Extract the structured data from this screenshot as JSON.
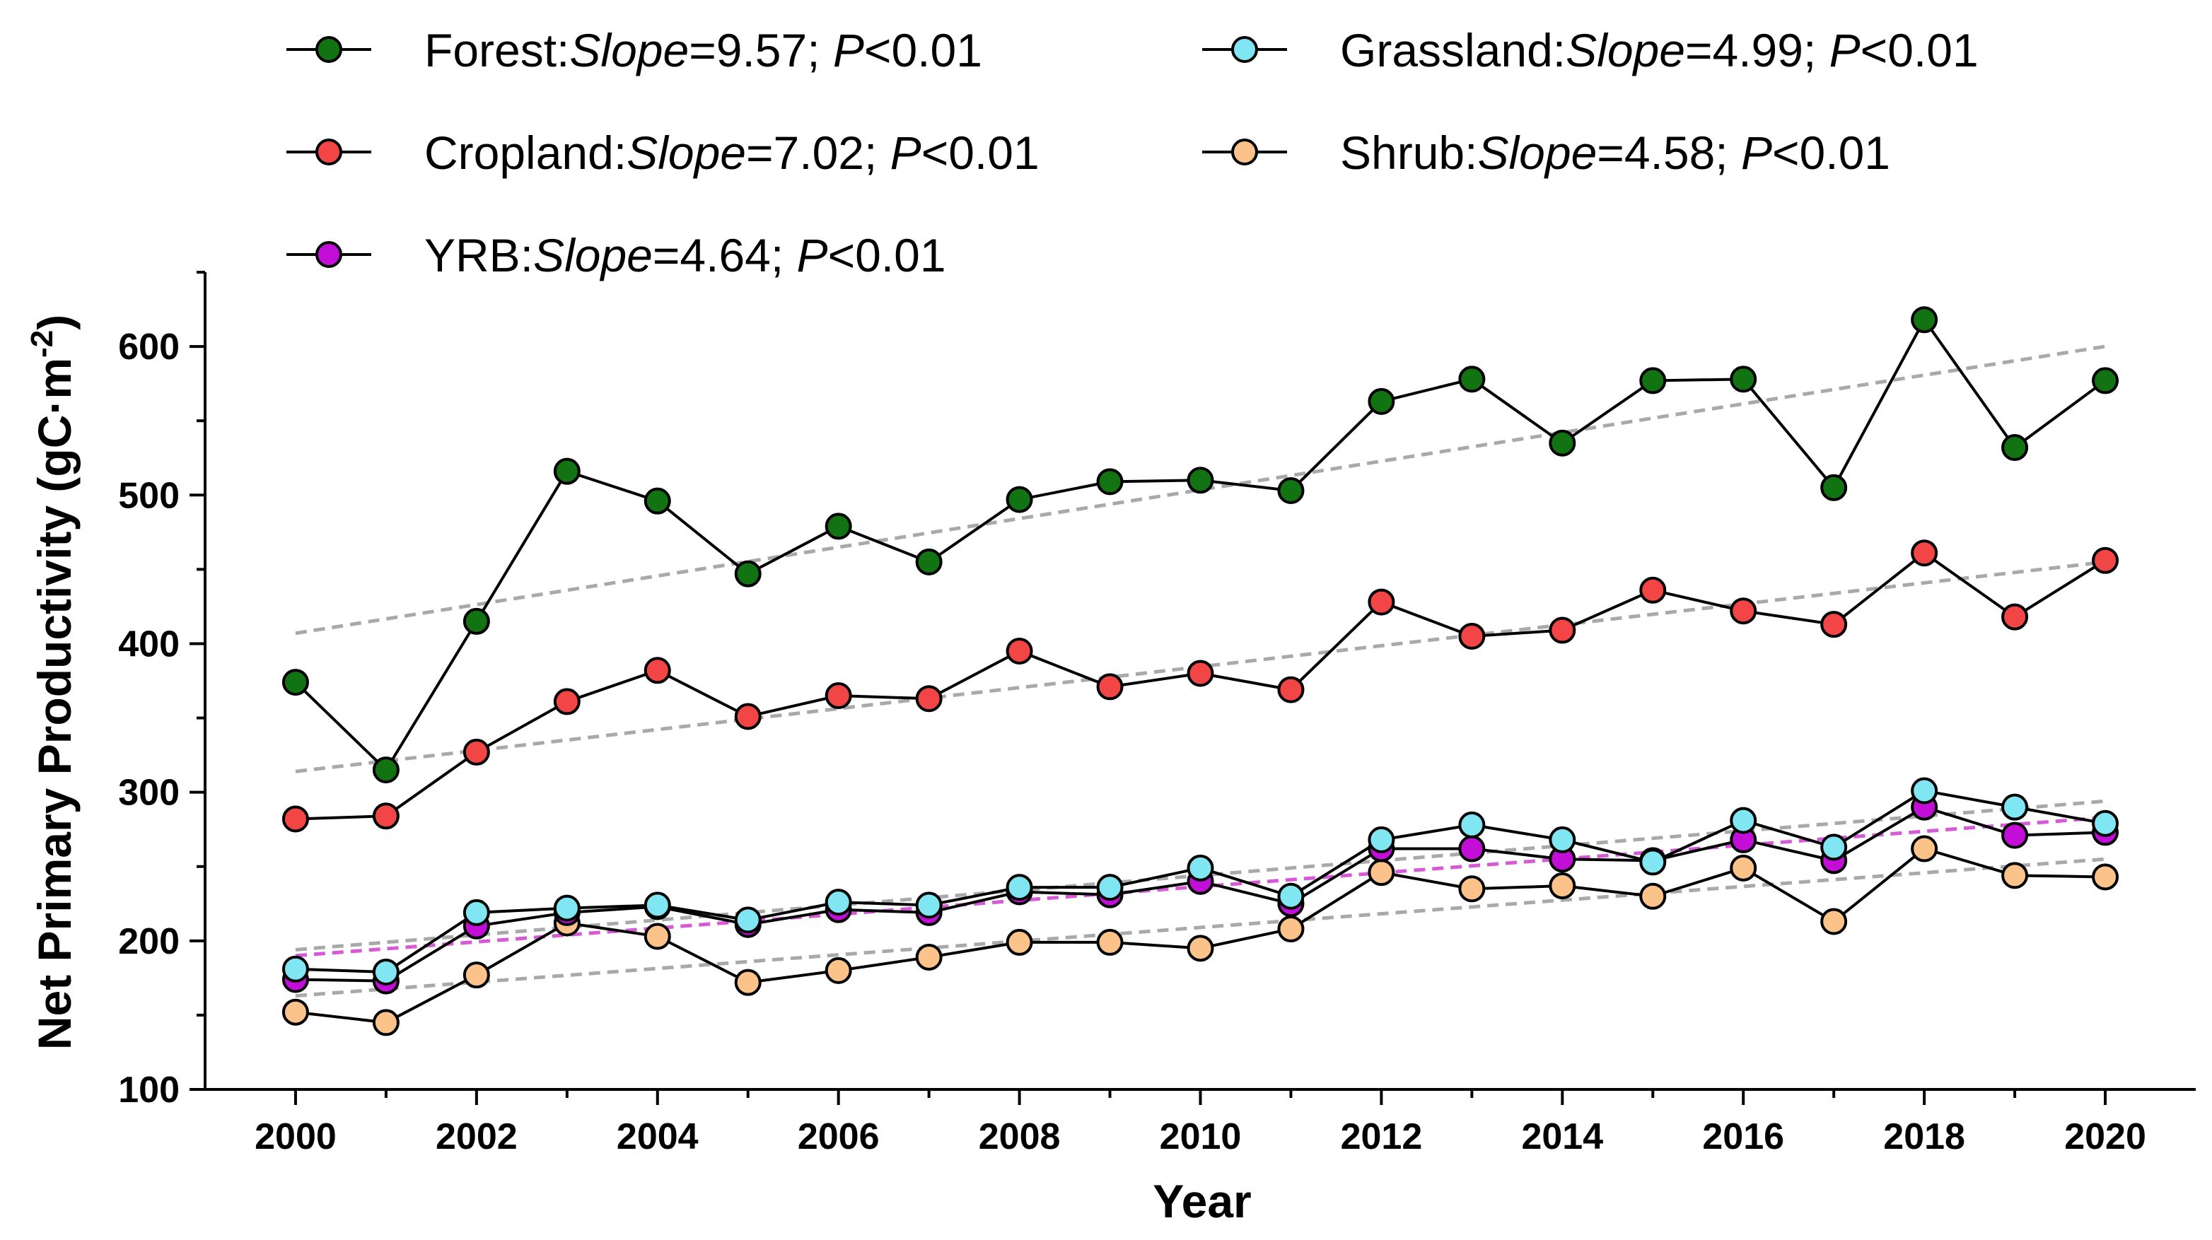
{
  "chart_data": {
    "type": "line",
    "xlabel": "Year",
    "ylabel": "Net Primary Productivity (gC·m",
    "ylabel_sup": "-2",
    "ylabel_close": ")",
    "xlim": [
      1999,
      2021
    ],
    "ylim": [
      100,
      650
    ],
    "x_ticks": [
      "2000",
      "2002",
      "2004",
      "2006",
      "2008",
      "2010",
      "2012",
      "2014",
      "2016",
      "2018",
      "2020"
    ],
    "y_ticks": [
      "100",
      "200",
      "300",
      "400",
      "500",
      "600"
    ],
    "x": [
      2000,
      2001,
      2002,
      2003,
      2004,
      2005,
      2006,
      2007,
      2008,
      2009,
      2010,
      2011,
      2012,
      2013,
      2014,
      2015,
      2016,
      2017,
      2018,
      2019,
      2020
    ],
    "series": [
      {
        "name": "Forest",
        "color": "#127312",
        "label_prefix": "Forest:",
        "label_slope_italic": "Slope",
        "label_slope_value": "=9.57; ",
        "label_p_italic": "P",
        "label_p_value": "<0.01",
        "values": [
          374,
          315,
          415,
          516,
          496,
          447,
          479,
          455,
          497,
          509,
          510,
          503,
          563,
          578,
          535,
          577,
          578,
          505,
          618,
          532,
          577
        ],
        "trend": [
          407,
          600
        ],
        "trend_color": "#a9a9a9"
      },
      {
        "name": "Cropland",
        "color": "#f24545",
        "label_prefix": "Cropland:",
        "label_slope_italic": "Slope",
        "label_slope_value": "=7.02; ",
        "label_p_italic": "P",
        "label_p_value": "<0.01",
        "values": [
          282,
          284,
          327,
          361,
          382,
          351,
          365,
          363,
          395,
          371,
          380,
          369,
          428,
          405,
          409,
          436,
          422,
          413,
          461,
          418,
          456
        ],
        "trend": [
          314,
          455
        ],
        "trend_color": "#a9a9a9"
      },
      {
        "name": "YRB",
        "color": "#c20ed6",
        "label_prefix": "YRB:",
        "label_slope_italic": "Slope",
        "label_slope_value": "=4.64; ",
        "label_p_italic": "P",
        "label_p_value": "<0.01",
        "values": [
          174,
          173,
          210,
          219,
          223,
          211,
          221,
          219,
          233,
          231,
          240,
          225,
          262,
          262,
          255,
          254,
          268,
          254,
          290,
          271,
          273
        ],
        "trend": [
          190,
          283
        ],
        "trend_color": "#d65ad6"
      },
      {
        "name": "Grassland",
        "color": "#7fe6f2",
        "label_prefix": "Grassland:",
        "label_slope_italic": "Slope",
        "label_slope_value": "=4.99; ",
        "label_p_italic": "P",
        "label_p_value": "<0.01",
        "values": [
          181,
          179,
          219,
          222,
          224,
          214,
          226,
          224,
          236,
          236,
          249,
          230,
          268,
          278,
          268,
          253,
          281,
          263,
          301,
          290,
          279
        ],
        "trend": [
          194,
          294
        ],
        "trend_color": "#a9a9a9"
      },
      {
        "name": "Shrub",
        "color": "#fbc38a",
        "label_prefix": "Shrub:",
        "label_slope_italic": "Slope",
        "label_slope_value": "=4.58; ",
        "label_p_italic": "P",
        "label_p_value": "<0.01",
        "values": [
          152,
          145,
          177,
          212,
          203,
          172,
          180,
          189,
          199,
          199,
          195,
          208,
          246,
          235,
          237,
          230,
          249,
          213,
          262,
          244,
          243
        ],
        "trend": [
          163,
          255
        ],
        "trend_color": "#a9a9a9"
      }
    ],
    "legend_order": [
      "Forest",
      "Grassland",
      "Cropland",
      "Shrub",
      "YRB"
    ],
    "legend": "top"
  }
}
